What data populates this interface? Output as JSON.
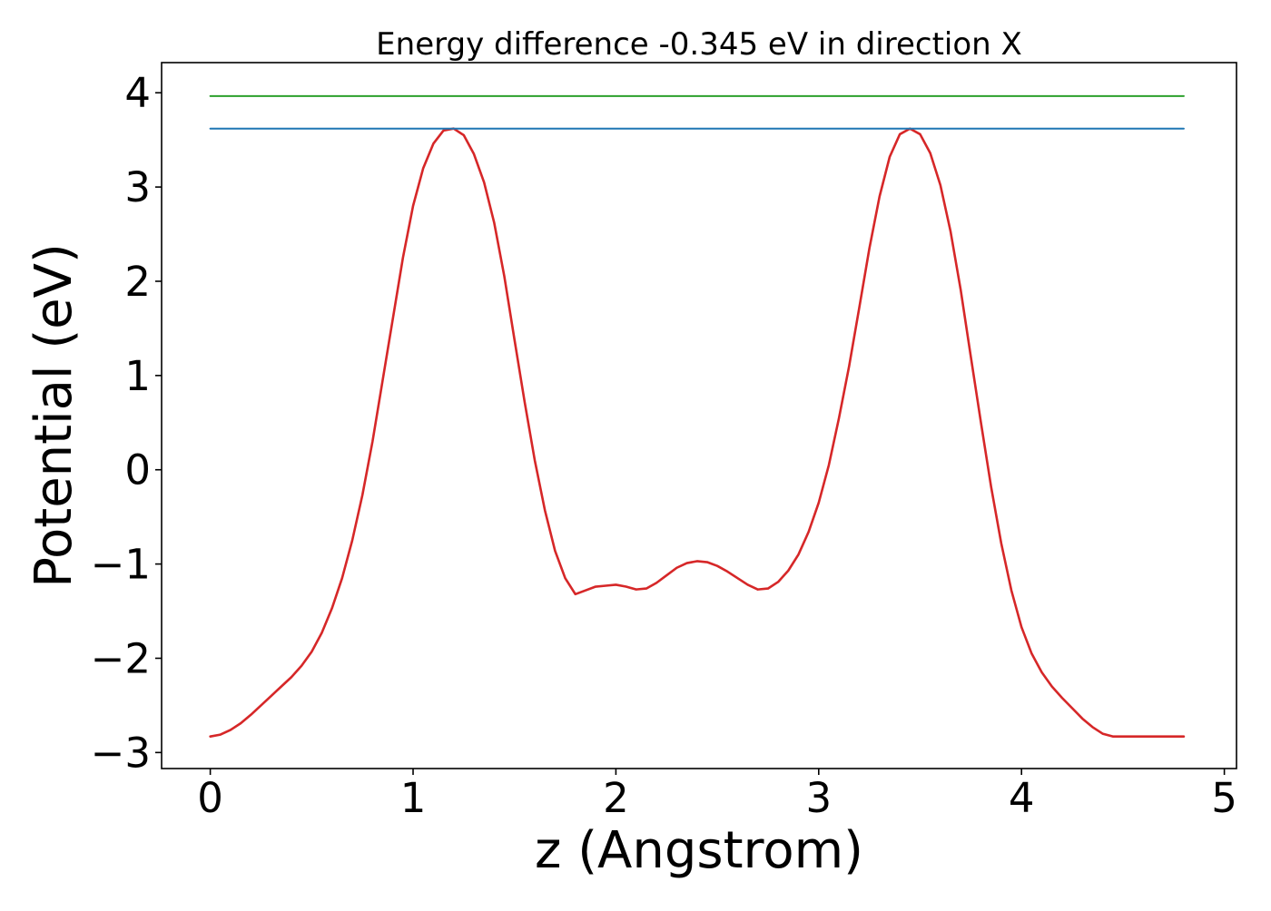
{
  "chart_data": {
    "type": "line",
    "title": "Energy difference -0.345 eV in direction X",
    "xlabel": "z (Angstrom)",
    "ylabel": "Potential (eV)",
    "xlim": [
      -0.24,
      5.06
    ],
    "ylim": [
      -3.17,
      4.32
    ],
    "x_ticks": [
      0,
      1,
      2,
      3,
      4,
      5
    ],
    "y_ticks": [
      -3,
      -2,
      -1,
      0,
      1,
      2,
      3,
      4
    ],
    "x_tick_labels": [
      "0",
      "1",
      "2",
      "3",
      "4",
      "5"
    ],
    "y_tick_labels": [
      "−3",
      "−2",
      "−1",
      "0",
      "1",
      "2",
      "3",
      "4"
    ],
    "grid": false,
    "legend": "none",
    "series": [
      {
        "color": "#d62728",
        "x": [
          0,
          0.05,
          0.1,
          0.15,
          0.2,
          0.25,
          0.3,
          0.35,
          0.4,
          0.45,
          0.5,
          0.55,
          0.6,
          0.65,
          0.7,
          0.75,
          0.8,
          0.85,
          0.9,
          0.95,
          1.0,
          1.05,
          1.1,
          1.15,
          1.2,
          1.25,
          1.3,
          1.35,
          1.4,
          1.45,
          1.5,
          1.55,
          1.6,
          1.65,
          1.7,
          1.75,
          1.8,
          1.85,
          1.9,
          1.95,
          2.0,
          2.05,
          2.1,
          2.15,
          2.2,
          2.25,
          2.3,
          2.35,
          2.4,
          2.45,
          2.5,
          2.55,
          2.6,
          2.65,
          2.7,
          2.75,
          2.8,
          2.85,
          2.9,
          2.95,
          3.0,
          3.05,
          3.1,
          3.15,
          3.2,
          3.25,
          3.3,
          3.35,
          3.4,
          3.45,
          3.5,
          3.55,
          3.6,
          3.65,
          3.7,
          3.75,
          3.8,
          3.85,
          3.9,
          3.95,
          4.0,
          4.05,
          4.1,
          4.15,
          4.2,
          4.25,
          4.3,
          4.35,
          4.4,
          4.45,
          4.5,
          4.55,
          4.6,
          4.65,
          4.7,
          4.75,
          4.8
        ],
        "y": [
          -2.83,
          -2.81,
          -2.76,
          -2.69,
          -2.6,
          -2.5,
          -2.4,
          -2.3,
          -2.2,
          -2.08,
          -1.93,
          -1.73,
          -1.47,
          -1.15,
          -0.75,
          -0.27,
          0.3,
          0.95,
          1.6,
          2.25,
          2.8,
          3.2,
          3.46,
          3.6,
          3.62,
          3.55,
          3.35,
          3.05,
          2.62,
          2.05,
          1.38,
          0.72,
          0.1,
          -0.43,
          -0.86,
          -1.15,
          -1.32,
          -1.28,
          -1.24,
          -1.23,
          -1.22,
          -1.24,
          -1.27,
          -1.26,
          -1.2,
          -1.12,
          -1.04,
          -0.99,
          -0.97,
          -0.98,
          -1.02,
          -1.08,
          -1.15,
          -1.22,
          -1.27,
          -1.26,
          -1.19,
          -1.07,
          -0.9,
          -0.66,
          -0.35,
          0.05,
          0.55,
          1.1,
          1.72,
          2.35,
          2.9,
          3.32,
          3.56,
          3.62,
          3.56,
          3.36,
          3.02,
          2.53,
          1.91,
          1.2,
          0.5,
          -0.18,
          -0.78,
          -1.28,
          -1.67,
          -1.95,
          -2.15,
          -2.3,
          -2.42,
          -2.53,
          -2.64,
          -2.73,
          -2.8,
          -2.83,
          -2.83,
          -2.83,
          -2.83,
          -2.83,
          -2.83,
          -2.83,
          -2.83
        ]
      },
      {
        "color": "#1f77b4",
        "x": [
          0,
          4.8
        ],
        "y": [
          3.62,
          3.62
        ]
      },
      {
        "color": "#2ca02c",
        "x": [
          0,
          4.8
        ],
        "y": [
          3.965,
          3.965
        ]
      }
    ]
  }
}
